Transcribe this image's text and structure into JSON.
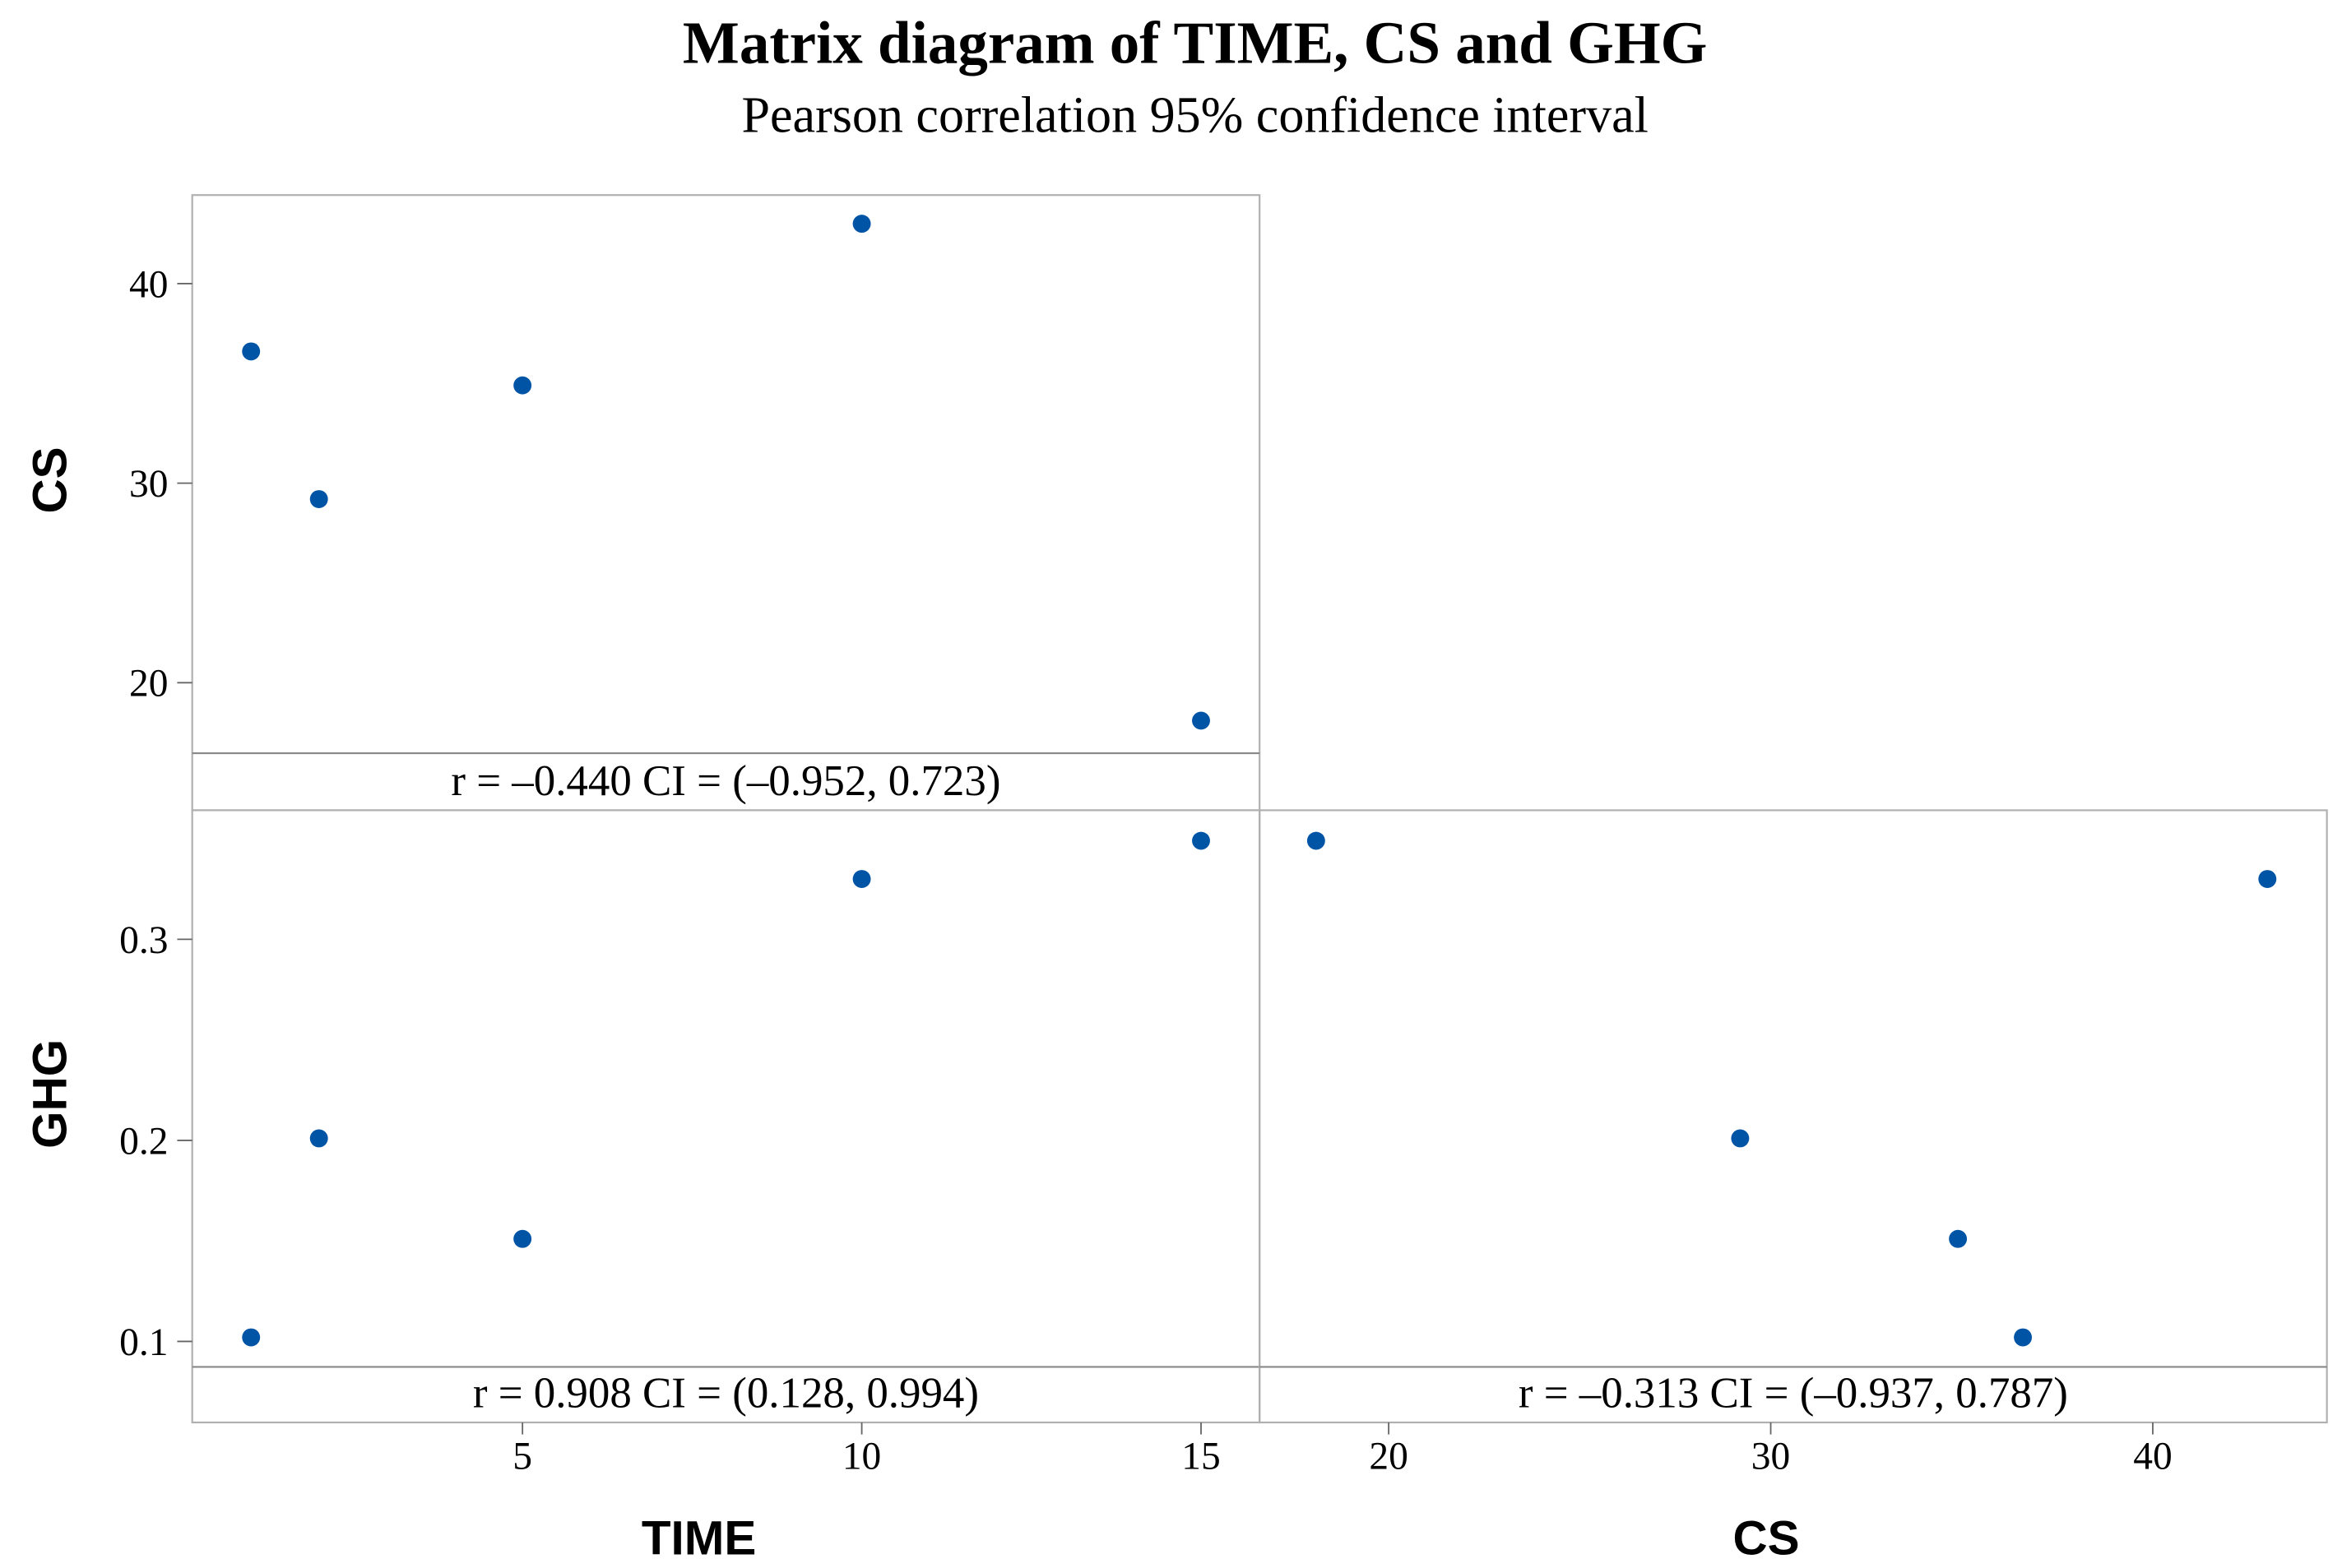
{
  "chart_data": {
    "type": "scatter",
    "subtype": "scatterplot matrix (lower triangle)",
    "title": "Matrix diagram of TIME, CS and GHG",
    "subtitle": "Pearson correlation 95% confidence interval",
    "variables": [
      "TIME",
      "CS",
      "GHG"
    ],
    "observations": {
      "TIME": [
        1,
        2,
        5,
        10,
        15
      ],
      "CS": [
        36.6,
        29.2,
        34.9,
        43.0,
        18.1
      ],
      "GHG": [
        0.102,
        0.201,
        0.151,
        0.33,
        0.349
      ]
    },
    "axes": {
      "TIME": {
        "label": "TIME",
        "ticks": [
          5,
          10,
          15
        ],
        "tick_labels": [
          "5",
          "10",
          "15"
        ]
      },
      "CS": {
        "label": "CS",
        "ticks": [
          20,
          30,
          40
        ],
        "tick_labels": [
          "20",
          "30",
          "40"
        ]
      },
      "GHG": {
        "label": "GHG",
        "ticks": [
          0.1,
          0.2,
          0.3
        ],
        "tick_labels": [
          "0.1",
          "0.2",
          "0.3"
        ]
      }
    },
    "panels": [
      {
        "x": "TIME",
        "y": "CS",
        "annotation": "r = –0.440  CI = (–0.952, 0.723)"
      },
      {
        "x": "TIME",
        "y": "GHG",
        "annotation": "r = 0.908  CI = (0.128, 0.994)"
      },
      {
        "x": "CS",
        "y": "GHG",
        "annotation": "r = –0.313  CI = (–0.937, 0.787)"
      }
    ],
    "grid": false,
    "legend": "none",
    "colors": {
      "points": "#0054a6",
      "frame": "#b0b0b0"
    }
  }
}
